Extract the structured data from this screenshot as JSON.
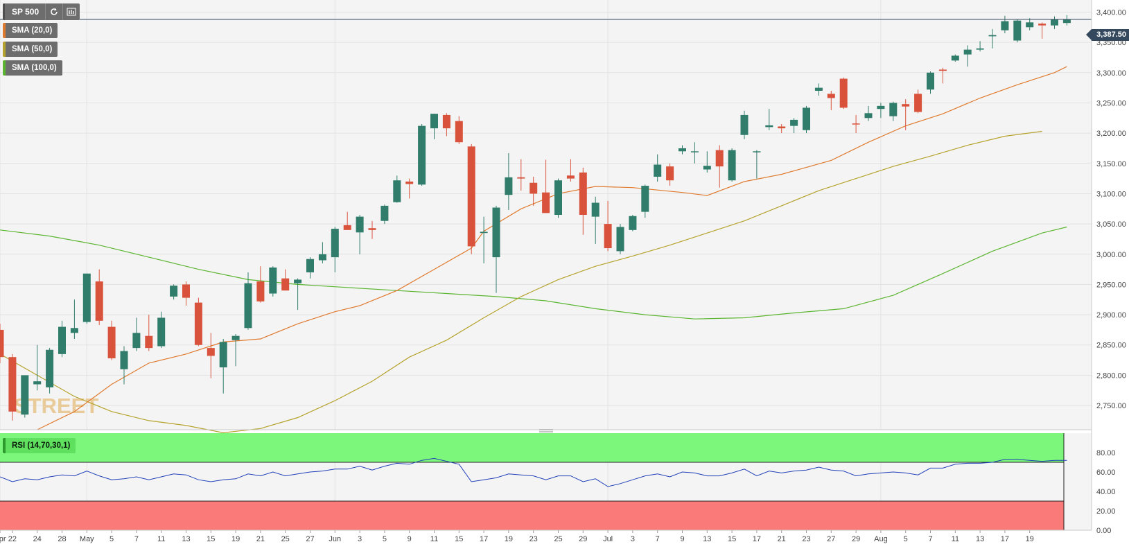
{
  "toolbar": {
    "symbol": "SP 500",
    "refresh_icon": "refresh-icon",
    "bars_icon": "chart-type-icon"
  },
  "indicators": {
    "sma20": "SMA (20,0)",
    "sma50": "SMA (50,0)",
    "sma100": "SMA (100,0)",
    "rsi": "RSI (14,70,30,1)"
  },
  "watermark": "STREET",
  "last_price_label": "3,387.50",
  "colors": {
    "up": "#2f7d6a",
    "down": "#d9533c",
    "sma20": "#e07a2e",
    "sma50": "#b5a32c",
    "sma100": "#5cb531",
    "rsi_line": "#1f3fb8",
    "overbought": "#7cf77c",
    "oversold": "#fa7a7a",
    "price_tag": "#34495e"
  },
  "chart_data": {
    "type": "candlestick",
    "ylim": [
      2710,
      3420
    ],
    "y_ticks": [
      "2,750.00",
      "2,800.00",
      "2,850.00",
      "2,900.00",
      "2,950.00",
      "3,000.00",
      "3,050.00",
      "3,100.00",
      "3,150.00",
      "3,200.00",
      "3,250.00",
      "3,300.00",
      "3,350.00",
      "3,400.00"
    ],
    "y_tick_values": [
      2750,
      2800,
      2850,
      2900,
      2950,
      3000,
      3050,
      3100,
      3150,
      3200,
      3250,
      3300,
      3350,
      3400
    ],
    "x_tick_labels": [
      "Apr",
      "22",
      "24",
      "28",
      "May",
      "5",
      "7",
      "11",
      "13",
      "15",
      "19",
      "21",
      "25",
      "27",
      "Jun",
      "3",
      "5",
      "9",
      "11",
      "15",
      "17",
      "19",
      "23",
      "25",
      "29",
      "Jul",
      "3",
      "7",
      "9",
      "13",
      "15",
      "17",
      "21",
      "23",
      "27",
      "29",
      "Aug",
      "5",
      "7",
      "11",
      "13",
      "17",
      "19"
    ],
    "x_tick_index": [
      0,
      1,
      3,
      5,
      7,
      9,
      11,
      13,
      15,
      17,
      19,
      21,
      23,
      25,
      27,
      29,
      31,
      33,
      35,
      37,
      39,
      41,
      43,
      45,
      47,
      49,
      51,
      53,
      55,
      57,
      59,
      61,
      63,
      65,
      67,
      69,
      71,
      73,
      75,
      77,
      79,
      81,
      83
    ],
    "candles": [
      {
        "o": 2875,
        "h": 2885,
        "l": 2820,
        "c": 2830
      },
      {
        "o": 2830,
        "h": 2835,
        "l": 2725,
        "c": 2740
      },
      {
        "o": 2735,
        "h": 2800,
        "l": 2730,
        "c": 2800
      },
      {
        "o": 2785,
        "h": 2850,
        "l": 2775,
        "c": 2790
      },
      {
        "o": 2780,
        "h": 2845,
        "l": 2770,
        "c": 2842
      },
      {
        "o": 2835,
        "h": 2890,
        "l": 2830,
        "c": 2880
      },
      {
        "o": 2870,
        "h": 2925,
        "l": 2860,
        "c": 2878
      },
      {
        "o": 2888,
        "h": 2968,
        "l": 2885,
        "c": 2968
      },
      {
        "o": 2955,
        "h": 2975,
        "l": 2883,
        "c": 2890
      },
      {
        "o": 2880,
        "h": 2890,
        "l": 2825,
        "c": 2828
      },
      {
        "o": 2810,
        "h": 2848,
        "l": 2785,
        "c": 2840
      },
      {
        "o": 2845,
        "h": 2895,
        "l": 2840,
        "c": 2870
      },
      {
        "o": 2865,
        "h": 2900,
        "l": 2840,
        "c": 2845
      },
      {
        "o": 2848,
        "h": 2905,
        "l": 2845,
        "c": 2895
      },
      {
        "o": 2930,
        "h": 2950,
        "l": 2925,
        "c": 2948
      },
      {
        "o": 2950,
        "h": 2955,
        "l": 2915,
        "c": 2928
      },
      {
        "o": 2920,
        "h": 2928,
        "l": 2848,
        "c": 2850
      },
      {
        "o": 2845,
        "h": 2870,
        "l": 2795,
        "c": 2832
      },
      {
        "o": 2813,
        "h": 2860,
        "l": 2770,
        "c": 2855
      },
      {
        "o": 2858,
        "h": 2868,
        "l": 2815,
        "c": 2865
      },
      {
        "o": 2878,
        "h": 2970,
        "l": 2875,
        "c": 2952
      },
      {
        "o": 2955,
        "h": 2980,
        "l": 2920,
        "c": 2922
      },
      {
        "o": 2935,
        "h": 2980,
        "l": 2930,
        "c": 2978
      },
      {
        "o": 2960,
        "h": 2975,
        "l": 2940,
        "c": 2940
      },
      {
        "o": 2952,
        "h": 2960,
        "l": 2908,
        "c": 2958
      },
      {
        "o": 2970,
        "h": 2995,
        "l": 2960,
        "c": 2992
      },
      {
        "o": 2990,
        "h": 3020,
        "l": 2985,
        "c": 3000
      },
      {
        "o": 2995,
        "h": 3045,
        "l": 2970,
        "c": 3042
      },
      {
        "o": 3048,
        "h": 3070,
        "l": 3040,
        "c": 3040
      },
      {
        "o": 3036,
        "h": 3065,
        "l": 3000,
        "c": 3062
      },
      {
        "o": 3043,
        "h": 3055,
        "l": 3025,
        "c": 3040
      },
      {
        "o": 3055,
        "h": 3082,
        "l": 3050,
        "c": 3080
      },
      {
        "o": 3086,
        "h": 3130,
        "l": 3085,
        "c": 3122
      },
      {
        "o": 3120,
        "h": 3125,
        "l": 3092,
        "c": 3116
      },
      {
        "o": 3115,
        "h": 3215,
        "l": 3113,
        "c": 3212
      },
      {
        "o": 3208,
        "h": 3232,
        "l": 3190,
        "c": 3232
      },
      {
        "o": 3230,
        "h": 3233,
        "l": 3195,
        "c": 3208
      },
      {
        "o": 3220,
        "h": 3228,
        "l": 3182,
        "c": 3185
      },
      {
        "o": 3178,
        "h": 3182,
        "l": 3000,
        "c": 3013
      },
      {
        "o": 3035,
        "h": 3062,
        "l": 2985,
        "c": 3037
      },
      {
        "o": 2995,
        "h": 3080,
        "l": 2936,
        "c": 3077
      },
      {
        "o": 3098,
        "h": 3167,
        "l": 3073,
        "c": 3127
      },
      {
        "o": 3127,
        "h": 3157,
        "l": 3105,
        "c": 3125
      },
      {
        "o": 3118,
        "h": 3128,
        "l": 3080,
        "c": 3100
      },
      {
        "o": 3102,
        "h": 3156,
        "l": 3068,
        "c": 3068
      },
      {
        "o": 3065,
        "h": 3125,
        "l": 3060,
        "c": 3122
      },
      {
        "o": 3130,
        "h": 3157,
        "l": 3120,
        "c": 3125
      },
      {
        "o": 3135,
        "h": 3143,
        "l": 3032,
        "c": 3065
      },
      {
        "o": 3062,
        "h": 3095,
        "l": 3017,
        "c": 3085
      },
      {
        "o": 3050,
        "h": 3088,
        "l": 3005,
        "c": 3010
      },
      {
        "o": 3005,
        "h": 3050,
        "l": 3000,
        "c": 3045
      },
      {
        "o": 3040,
        "h": 3065,
        "l": 3038,
        "c": 3063
      },
      {
        "o": 3070,
        "h": 3115,
        "l": 3060,
        "c": 3113
      },
      {
        "o": 3128,
        "h": 3165,
        "l": 3120,
        "c": 3148
      },
      {
        "o": 3145,
        "h": 3150,
        "l": 3113,
        "c": 3122
      },
      {
        "o": 3170,
        "h": 3180,
        "l": 3165,
        "c": 3175
      },
      {
        "o": 3170,
        "h": 3185,
        "l": 3150,
        "c": 3170
      },
      {
        "o": 3140,
        "h": 3170,
        "l": 3135,
        "c": 3146
      },
      {
        "o": 3172,
        "h": 3180,
        "l": 3110,
        "c": 3145
      },
      {
        "o": 3122,
        "h": 3175,
        "l": 3120,
        "c": 3172
      },
      {
        "o": 3197,
        "h": 3237,
        "l": 3190,
        "c": 3230
      },
      {
        "o": 3170,
        "h": 3172,
        "l": 3125,
        "c": 3170
      },
      {
        "o": 3210,
        "h": 3240,
        "l": 3205,
        "c": 3213
      },
      {
        "o": 3211,
        "h": 3215,
        "l": 3200,
        "c": 3208
      },
      {
        "o": 3212,
        "h": 3225,
        "l": 3200,
        "c": 3222
      },
      {
        "o": 3205,
        "h": 3245,
        "l": 3200,
        "c": 3242
      },
      {
        "o": 3270,
        "h": 3282,
        "l": 3262,
        "c": 3275
      },
      {
        "o": 3265,
        "h": 3270,
        "l": 3238,
        "c": 3258
      },
      {
        "o": 3290,
        "h": 3292,
        "l": 3240,
        "c": 3242
      },
      {
        "o": 3216,
        "h": 3230,
        "l": 3200,
        "c": 3215
      },
      {
        "o": 3225,
        "h": 3245,
        "l": 3220,
        "c": 3233
      },
      {
        "o": 3240,
        "h": 3250,
        "l": 3225,
        "c": 3245
      },
      {
        "o": 3228,
        "h": 3252,
        "l": 3220,
        "c": 3250
      },
      {
        "o": 3248,
        "h": 3256,
        "l": 3205,
        "c": 3244
      },
      {
        "o": 3265,
        "h": 3272,
        "l": 3233,
        "c": 3235
      },
      {
        "o": 3272,
        "h": 3302,
        "l": 3265,
        "c": 3300
      },
      {
        "o": 3305,
        "h": 3308,
        "l": 3282,
        "c": 3303
      },
      {
        "o": 3320,
        "h": 3330,
        "l": 3318,
        "c": 3328
      },
      {
        "o": 3330,
        "h": 3345,
        "l": 3310,
        "c": 3338
      },
      {
        "o": 3338,
        "h": 3352,
        "l": 3335,
        "c": 3340
      },
      {
        "o": 3360,
        "h": 3372,
        "l": 3340,
        "c": 3362
      },
      {
        "o": 3370,
        "h": 3394,
        "l": 3365,
        "c": 3385
      },
      {
        "o": 3353,
        "h": 3388,
        "l": 3350,
        "c": 3386
      },
      {
        "o": 3375,
        "h": 3390,
        "l": 3370,
        "c": 3383
      },
      {
        "o": 3381,
        "h": 3383,
        "l": 3356,
        "c": 3378
      },
      {
        "o": 3378,
        "h": 3393,
        "l": 3372,
        "c": 3388
      },
      {
        "o": 3382,
        "h": 3395,
        "l": 3378,
        "c": 3388
      }
    ],
    "sma20": [
      [
        3,
        2710
      ],
      [
        6,
        2740
      ],
      [
        9,
        2785
      ],
      [
        12,
        2820
      ],
      [
        15,
        2835
      ],
      [
        18,
        2855
      ],
      [
        21,
        2860
      ],
      [
        24,
        2885
      ],
      [
        27,
        2905
      ],
      [
        29,
        2915
      ],
      [
        32,
        2940
      ],
      [
        35,
        2975
      ],
      [
        38,
        3010
      ],
      [
        39,
        3038
      ],
      [
        42,
        3075
      ],
      [
        45,
        3100
      ],
      [
        48,
        3112
      ],
      [
        51,
        3110
      ],
      [
        55,
        3102
      ],
      [
        57,
        3097
      ],
      [
        60,
        3120
      ],
      [
        63,
        3132
      ],
      [
        67,
        3155
      ],
      [
        70,
        3185
      ],
      [
        73,
        3212
      ],
      [
        76,
        3232
      ],
      [
        79,
        3258
      ],
      [
        82,
        3280
      ],
      [
        85,
        3300
      ],
      [
        86,
        3310
      ]
    ],
    "sma50": [
      [
        0,
        2835
      ],
      [
        3,
        2800
      ],
      [
        6,
        2765
      ],
      [
        9,
        2740
      ],
      [
        12,
        2725
      ],
      [
        15,
        2717
      ],
      [
        18,
        2705
      ],
      [
        21,
        2712
      ],
      [
        24,
        2730
      ],
      [
        27,
        2758
      ],
      [
        30,
        2790
      ],
      [
        33,
        2830
      ],
      [
        36,
        2858
      ],
      [
        39,
        2895
      ],
      [
        42,
        2930
      ],
      [
        45,
        2958
      ],
      [
        48,
        2980
      ],
      [
        51,
        2997
      ],
      [
        54,
        3015
      ],
      [
        57,
        3035
      ],
      [
        60,
        3055
      ],
      [
        63,
        3080
      ],
      [
        66,
        3105
      ],
      [
        69,
        3125
      ],
      [
        72,
        3145
      ],
      [
        75,
        3162
      ],
      [
        78,
        3180
      ],
      [
        81,
        3195
      ],
      [
        84,
        3203
      ]
    ],
    "sma100": [
      [
        0,
        3040
      ],
      [
        4,
        3030
      ],
      [
        8,
        3015
      ],
      [
        12,
        2995
      ],
      [
        16,
        2975
      ],
      [
        20,
        2958
      ],
      [
        24,
        2950
      ],
      [
        28,
        2945
      ],
      [
        32,
        2940
      ],
      [
        36,
        2935
      ],
      [
        40,
        2930
      ],
      [
        44,
        2923
      ],
      [
        48,
        2910
      ],
      [
        52,
        2900
      ],
      [
        56,
        2893
      ],
      [
        60,
        2895
      ],
      [
        64,
        2903
      ],
      [
        68,
        2910
      ],
      [
        72,
        2932
      ],
      [
        76,
        2968
      ],
      [
        80,
        3005
      ],
      [
        84,
        3035
      ],
      [
        86,
        3045
      ]
    ],
    "rsi": {
      "ylim": [
        0,
        100
      ],
      "y_ticks": [
        "0.00",
        "20.00",
        "40.00",
        "60.00",
        "80.00"
      ],
      "y_tick_values": [
        0,
        20,
        40,
        60,
        80
      ],
      "overbought": 70,
      "oversold": 30,
      "values": [
        55,
        50,
        53,
        52,
        55,
        57,
        56,
        61,
        56,
        52,
        53,
        55,
        52,
        55,
        58,
        57,
        52,
        50,
        52,
        53,
        58,
        56,
        60,
        56,
        58,
        60,
        61,
        63,
        63,
        66,
        62,
        66,
        69,
        68,
        72,
        74,
        71,
        68,
        50,
        52,
        54,
        58,
        57,
        56,
        52,
        56,
        56,
        50,
        53,
        45,
        48,
        52,
        56,
        58,
        55,
        60,
        59,
        56,
        56,
        59,
        63,
        56,
        61,
        59,
        61,
        62,
        65,
        62,
        61,
        56,
        58,
        59,
        60,
        59,
        57,
        64,
        64,
        68,
        69,
        69,
        70,
        73,
        73,
        72,
        71,
        72,
        72
      ]
    }
  }
}
